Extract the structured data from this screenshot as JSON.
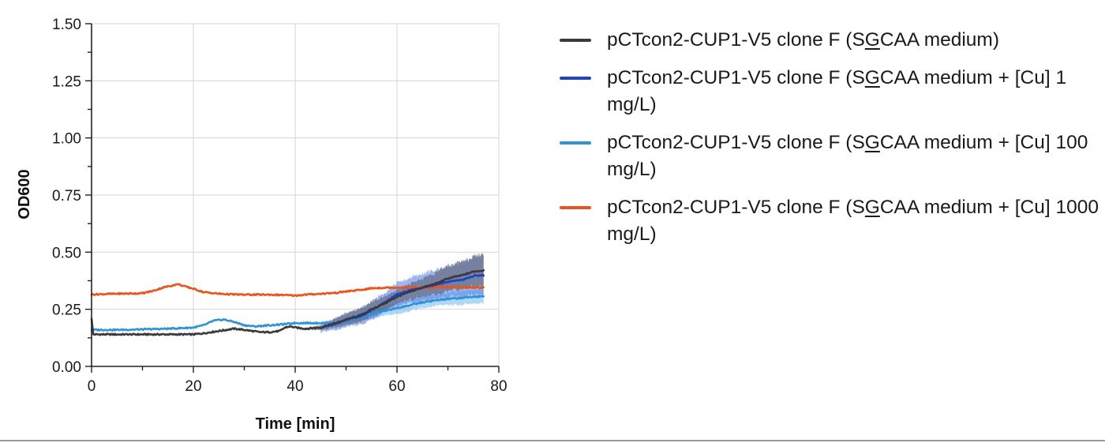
{
  "colors": {
    "series": [
      "#3a3a3e",
      "#1f43c4",
      "#2f93d6",
      "#e8561b"
    ],
    "bands": [
      "#56565c",
      "#4d78e6",
      "#6fb6ec",
      "#f09a70"
    ],
    "grid": "#d4d4d4",
    "axis": "#222222"
  },
  "chart_data": {
    "type": "line",
    "title": "",
    "xlabel": "Time [min]",
    "ylabel": "OD600",
    "xlim": [
      0,
      80
    ],
    "ylim": [
      0,
      1.5
    ],
    "x_ticks": [
      0,
      20,
      40,
      60,
      80
    ],
    "x_tick_labels": [
      "0",
      "20",
      "40",
      "60",
      "80"
    ],
    "y_ticks": [
      0,
      0.25,
      0.5,
      0.75,
      1.0,
      1.25,
      1.5
    ],
    "y_tick_labels": [
      "0.00",
      "0.25",
      "0.50",
      "0.75",
      "1.00",
      "1.25",
      "1.50"
    ],
    "grid": true,
    "legend_position": "right",
    "series": [
      {
        "label_parts": [
          {
            "text": "pCTcon2-CUP1-V5 clone F (S"
          },
          {
            "text": "G",
            "u": true
          },
          {
            "text": "CAA medium)"
          }
        ],
        "x": [
          0,
          0.3,
          5,
          10,
          15,
          20,
          22,
          25,
          28,
          30,
          33,
          35,
          37,
          38,
          39,
          40,
          42,
          45,
          48,
          50,
          53,
          55,
          58,
          60,
          63,
          65,
          68,
          70,
          73,
          75,
          77
        ],
        "y": [
          0.21,
          0.14,
          0.14,
          0.14,
          0.14,
          0.14,
          0.145,
          0.155,
          0.165,
          0.16,
          0.15,
          0.15,
          0.155,
          0.17,
          0.175,
          0.17,
          0.165,
          0.17,
          0.19,
          0.205,
          0.225,
          0.25,
          0.28,
          0.305,
          0.33,
          0.345,
          0.365,
          0.385,
          0.4,
          0.415,
          0.42
        ],
        "band": [
          0,
          0,
          0,
          0,
          0,
          0,
          0,
          0,
          0,
          0,
          0,
          0,
          0,
          0,
          0,
          0,
          0.005,
          0.01,
          0.02,
          0.025,
          0.03,
          0.03,
          0.03,
          0.03,
          0.035,
          0.04,
          0.05,
          0.055,
          0.06,
          0.065,
          0.07
        ]
      },
      {
        "label_parts": [
          {
            "text": "pCTcon2-CUP1-V5 clone F (S"
          },
          {
            "text": "G",
            "u": true
          },
          {
            "text": "CAA medium + [Cu] 1 mg/L)"
          }
        ],
        "x": [
          45,
          48,
          50,
          53,
          55,
          58,
          60,
          63,
          65,
          68,
          70,
          73,
          75,
          77
        ],
        "y": [
          0.17,
          0.185,
          0.205,
          0.22,
          0.245,
          0.285,
          0.315,
          0.335,
          0.345,
          0.36,
          0.37,
          0.38,
          0.395,
          0.4
        ],
        "band": [
          0.02,
          0.025,
          0.03,
          0.035,
          0.04,
          0.045,
          0.05,
          0.055,
          0.06,
          0.065,
          0.07,
          0.075,
          0.085,
          0.09
        ]
      },
      {
        "label_parts": [
          {
            "text": "pCTcon2-CUP1-V5 clone F (S"
          },
          {
            "text": "G",
            "u": true
          },
          {
            "text": "CAA medium + [Cu] 100 mg/L)"
          }
        ],
        "x": [
          0,
          5,
          10,
          15,
          20,
          22,
          24,
          26,
          28,
          30,
          32,
          35,
          38,
          40,
          42,
          45,
          48,
          50,
          53,
          55,
          58,
          60,
          63,
          65,
          68,
          70,
          73,
          75,
          77
        ],
        "y": [
          0.16,
          0.16,
          0.162,
          0.165,
          0.17,
          0.18,
          0.2,
          0.205,
          0.195,
          0.18,
          0.175,
          0.18,
          0.185,
          0.19,
          0.19,
          0.19,
          0.19,
          0.2,
          0.215,
          0.23,
          0.245,
          0.255,
          0.27,
          0.28,
          0.29,
          0.295,
          0.3,
          0.305,
          0.305
        ],
        "band": [
          0,
          0,
          0,
          0,
          0,
          0,
          0,
          0,
          0,
          0,
          0,
          0,
          0,
          0,
          0,
          0,
          0.005,
          0.01,
          0.015,
          0.02,
          0.02,
          0.025,
          0.025,
          0.025,
          0.025,
          0.025,
          0.03,
          0.03,
          0.03
        ]
      },
      {
        "label_parts": [
          {
            "text": "pCTcon2-CUP1-V5 clone F (S"
          },
          {
            "text": "G",
            "u": true
          },
          {
            "text": "CAA medium + [Cu] 1000 mg/L)"
          }
        ],
        "x": [
          0,
          5,
          10,
          12,
          14,
          16,
          17,
          18,
          20,
          22,
          25,
          28,
          30,
          35,
          38,
          40,
          42,
          45,
          48,
          50,
          53,
          55,
          58,
          60,
          63,
          65,
          68,
          70,
          73,
          75,
          77
        ],
        "y": [
          0.315,
          0.318,
          0.32,
          0.33,
          0.345,
          0.355,
          0.36,
          0.352,
          0.34,
          0.325,
          0.318,
          0.315,
          0.314,
          0.314,
          0.312,
          0.31,
          0.314,
          0.318,
          0.322,
          0.328,
          0.335,
          0.342,
          0.345,
          0.345,
          0.346,
          0.345,
          0.347,
          0.347,
          0.346,
          0.345,
          0.345
        ],
        "band": [
          0,
          0,
          0,
          0,
          0,
          0,
          0,
          0,
          0,
          0,
          0,
          0,
          0,
          0,
          0,
          0,
          0,
          0,
          0,
          0.003,
          0.004,
          0.005,
          0.005,
          0.005,
          0.006,
          0.006,
          0.006,
          0.006,
          0.006,
          0.006,
          0.006
        ]
      }
    ]
  }
}
